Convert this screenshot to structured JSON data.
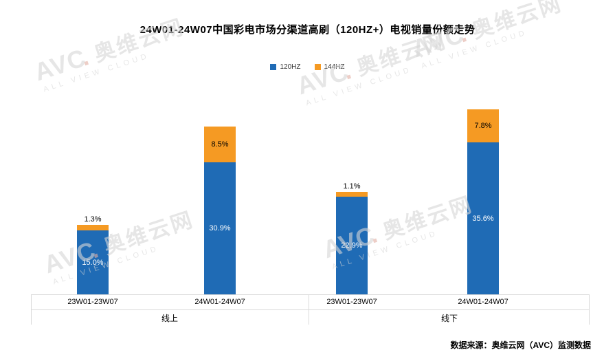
{
  "title": "24W01-24W07中国彩电市场分渠道高刷（120HZ+）电视销量份额走势",
  "legend": {
    "items": [
      {
        "label": "120HZ",
        "color": "#1F6BB5"
      },
      {
        "label": "144HZ",
        "color": "#F59A23"
      }
    ]
  },
  "source": "数据来源：奥维云网（AVC）监测数据",
  "watermark": {
    "brand": "AVC",
    "dot": ".",
    "cn": "奥维云网",
    "en": "ALL VIEW CLOUD"
  },
  "chart_data": {
    "type": "bar",
    "stacked": true,
    "title": "24W01-24W07中国彩电市场分渠道高刷（120HZ+）电视销量份额走势",
    "group_labels": [
      "线上",
      "线下"
    ],
    "categories": [
      "23W01-23W07",
      "24W01-24W07",
      "23W01-23W07",
      "24W01-24W07"
    ],
    "series": [
      {
        "name": "120HZ",
        "color": "#1F6BB5",
        "values": [
          15.0,
          30.9,
          22.9,
          35.6
        ]
      },
      {
        "name": "144HZ",
        "color": "#F59A23",
        "values": [
          1.3,
          8.5,
          1.1,
          7.8
        ]
      }
    ],
    "value_suffix": "%",
    "ylabel": "",
    "xlabel": "",
    "ylim": [
      0,
      48
    ],
    "grid": false,
    "legend_position": "top"
  }
}
